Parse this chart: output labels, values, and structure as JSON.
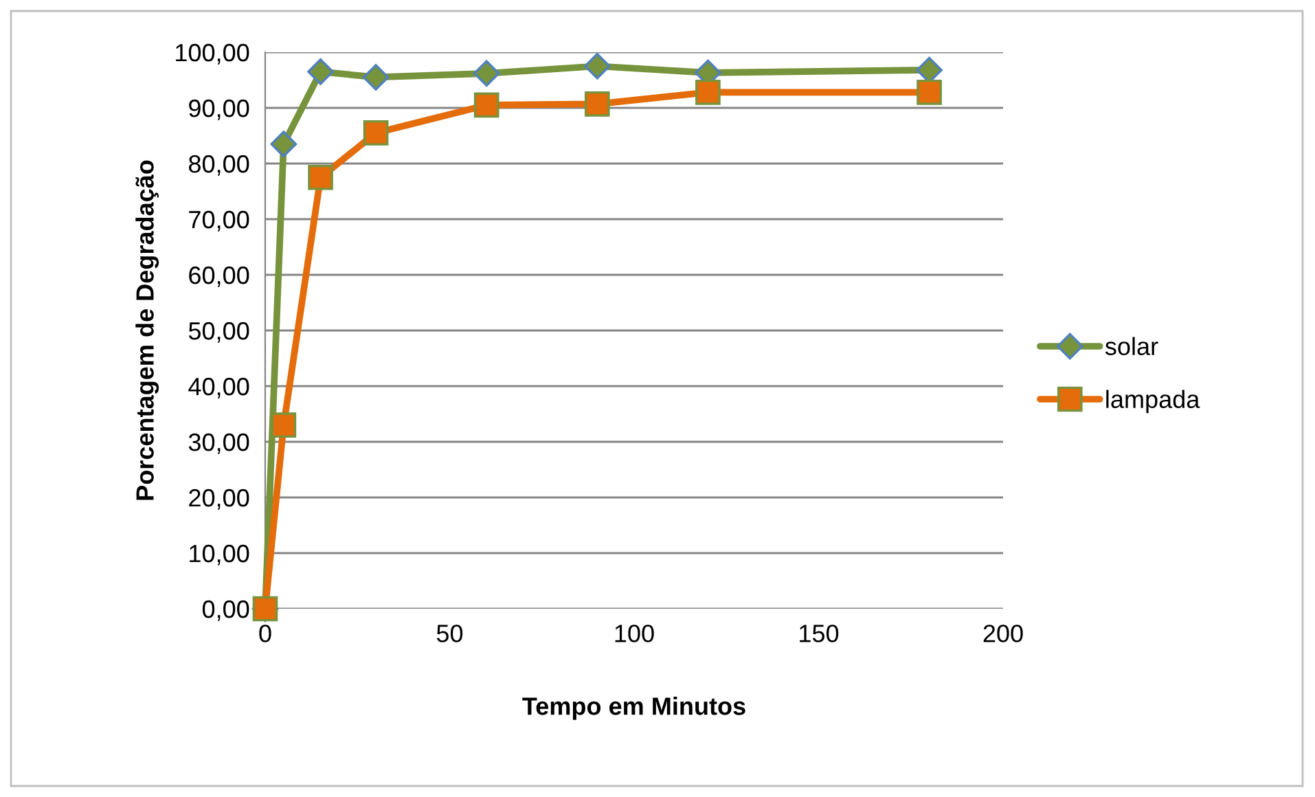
{
  "chart_data": {
    "type": "line",
    "xlabel": "Tempo em Minutos",
    "ylabel": "Porcentagem de Degradação",
    "x": [
      0,
      5,
      15,
      30,
      60,
      90,
      120,
      180
    ],
    "series": [
      {
        "name": "solar",
        "color": "#77933c",
        "marker": "diamond",
        "values": [
          0,
          83.5,
          96.5,
          95.5,
          96.2,
          97.5,
          96.3,
          96.8
        ]
      },
      {
        "name": "lampada",
        "color": "#e46c0a",
        "marker": "square",
        "values": [
          0,
          33,
          77.5,
          85.5,
          90.5,
          90.7,
          92.8,
          92.8
        ]
      }
    ],
    "xlim": [
      0,
      200
    ],
    "xticks": [
      0,
      50,
      100,
      150,
      200
    ],
    "ylim": [
      0,
      100
    ],
    "yticks": [
      {
        "value": 0,
        "label": "0,00"
      },
      {
        "value": 10,
        "label": "10,00"
      },
      {
        "value": 20,
        "label": "20,00"
      },
      {
        "value": 30,
        "label": "30,00"
      },
      {
        "value": 40,
        "label": "40,00"
      },
      {
        "value": 50,
        "label": "50,00"
      },
      {
        "value": 60,
        "label": "60,00"
      },
      {
        "value": 70,
        "label": "70,00"
      },
      {
        "value": 80,
        "label": "80,00"
      },
      {
        "value": 90,
        "label": "90,00"
      },
      {
        "value": 100,
        "label": "100,00"
      }
    ],
    "grid": "y",
    "legend": "right",
    "line_style": "solid"
  }
}
